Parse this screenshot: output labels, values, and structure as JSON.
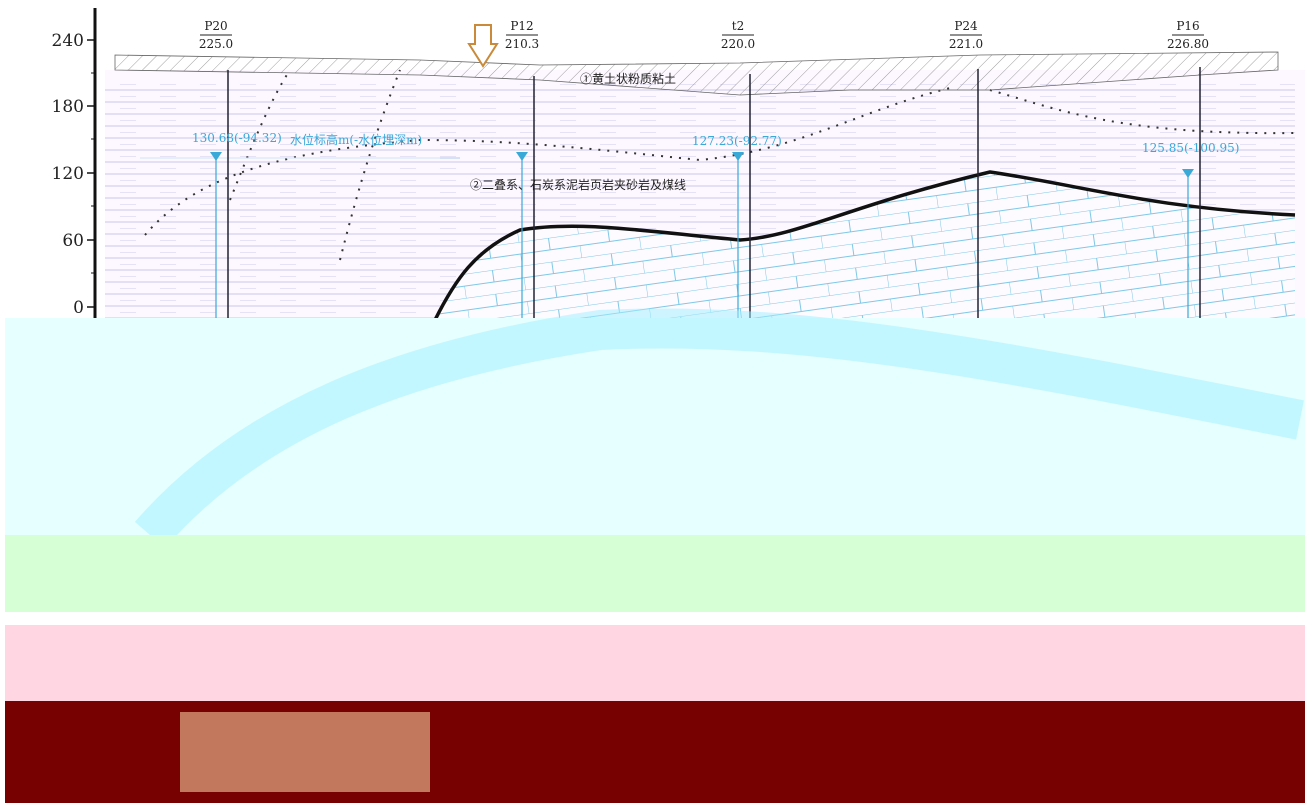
{
  "axis": {
    "ticks": [
      "240",
      "180",
      "120",
      "60",
      "0"
    ]
  },
  "boreholes": [
    {
      "name": "P20",
      "elevation": "225.0"
    },
    {
      "name": "P12",
      "elevation": "210.3"
    },
    {
      "name": "t2",
      "elevation": "220.0"
    },
    {
      "name": "P24",
      "elevation": "221.0"
    },
    {
      "name": "P16",
      "elevation": "226.80"
    }
  ],
  "layers": [
    "①黄土状粉质粘土",
    "②二叠系、石炭系泥岩页岩夹砂岩及煤线"
  ],
  "water_levels": [
    "130.68(-94.32)",
    "127.23(-92.77)",
    "125.85(-100.95)"
  ],
  "legend": "水位标高m(-水位埋深m)"
}
